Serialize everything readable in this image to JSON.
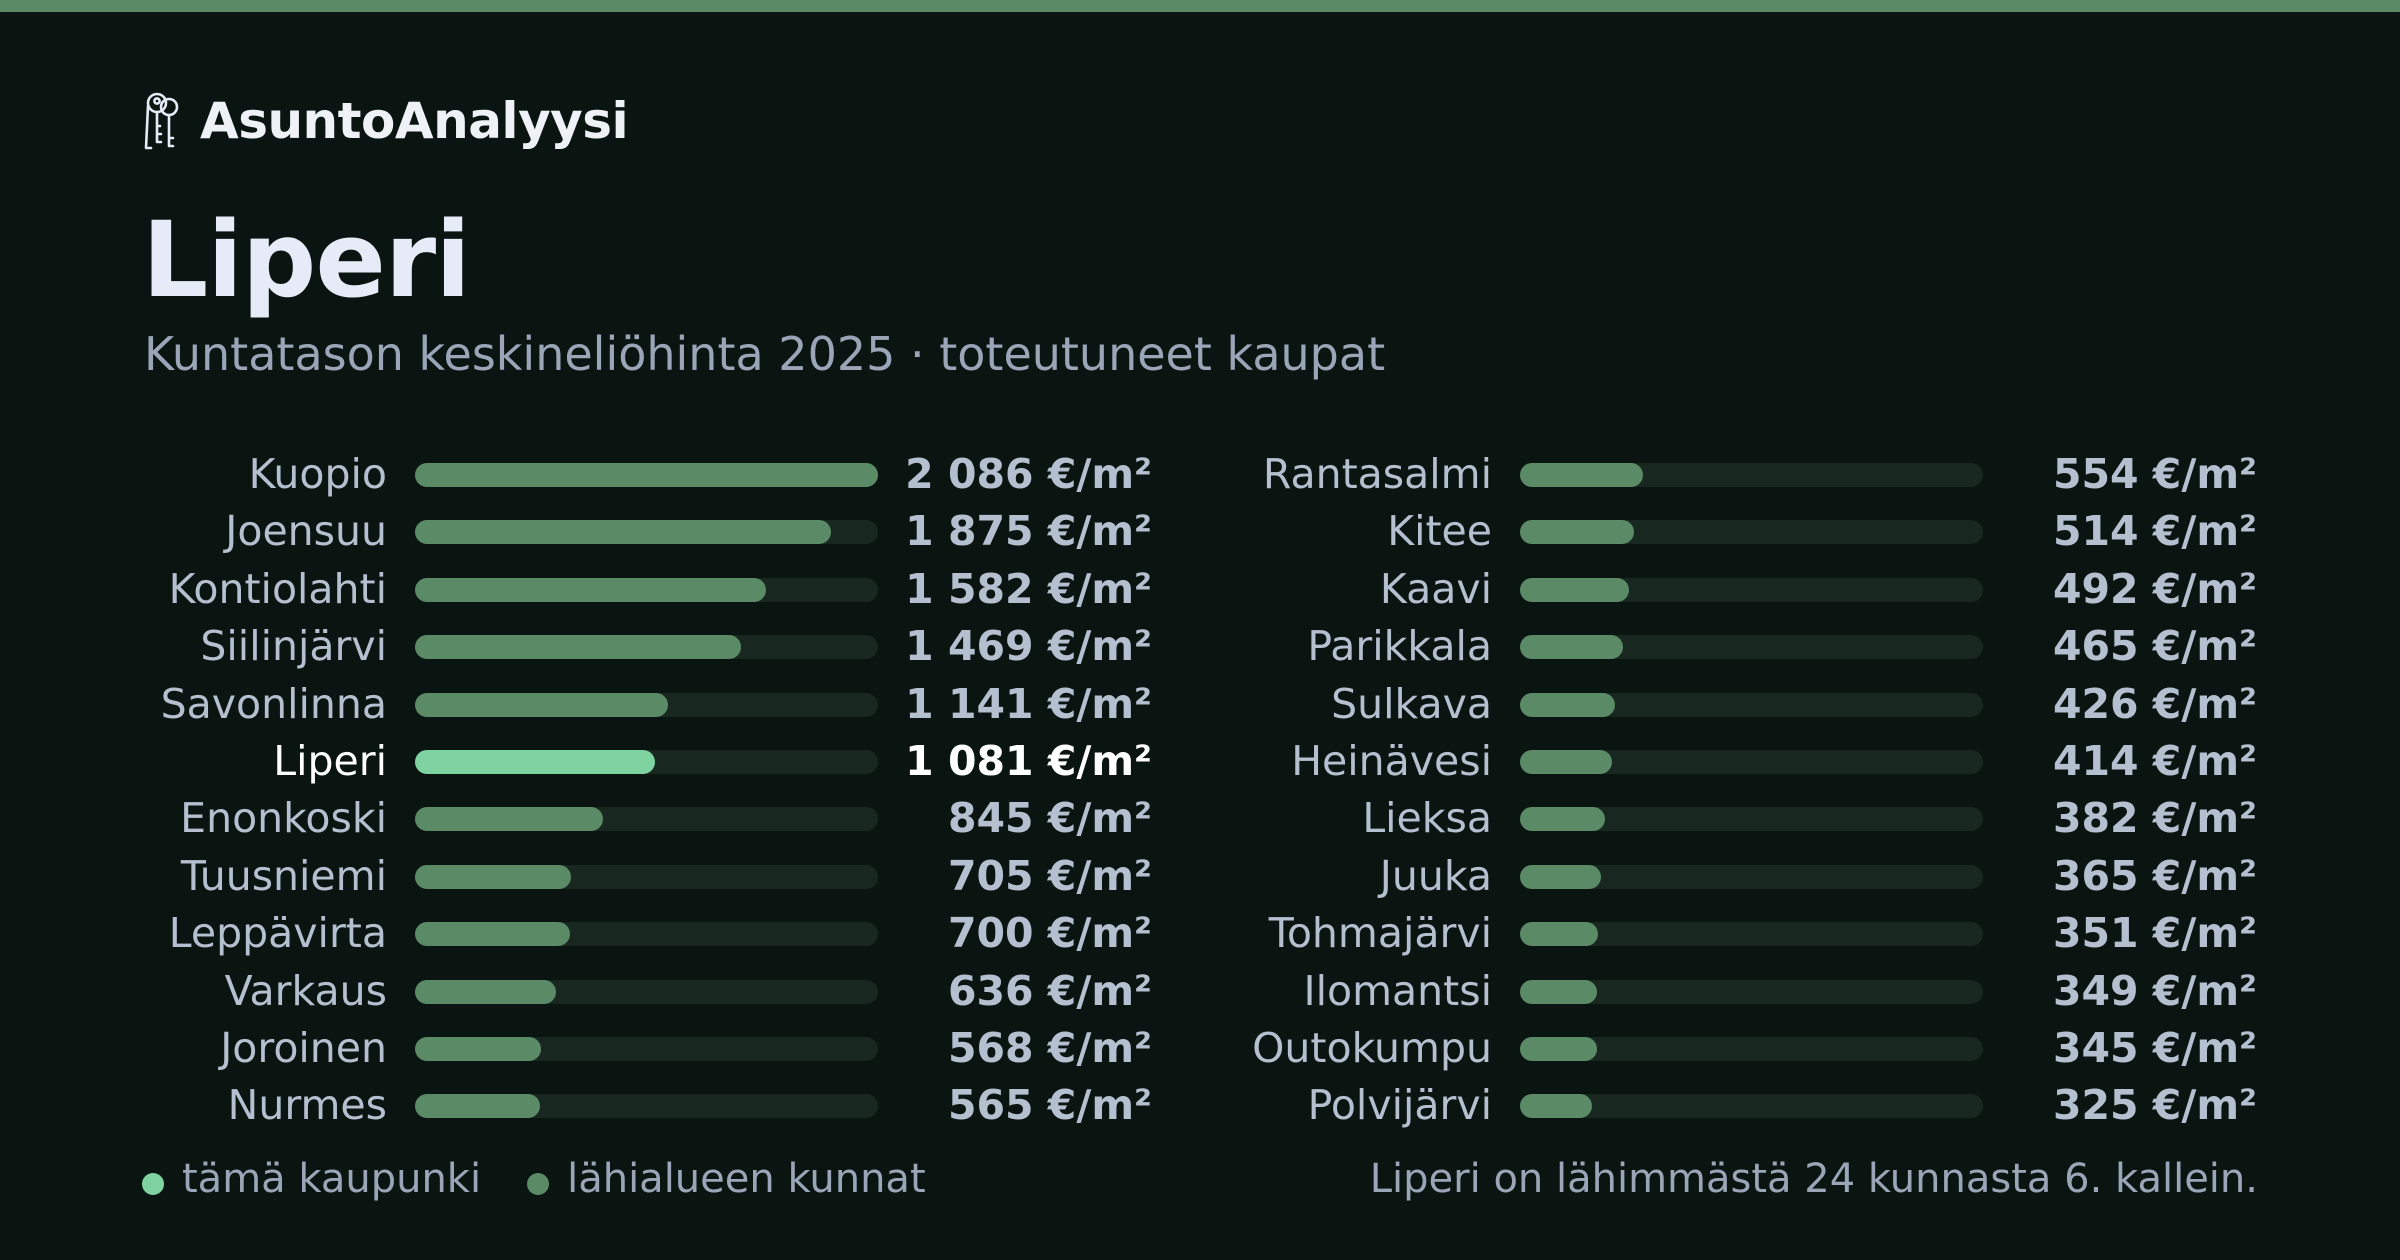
{
  "brand": {
    "name": "AsuntoAnalyysi",
    "icon": "keys-icon"
  },
  "colors": {
    "accent": "#5b8a66",
    "highlight": "#7fd3a0",
    "background": "#0a1512",
    "track": "#18271f"
  },
  "chart_data": {
    "type": "bar",
    "orientation": "horizontal",
    "title": "Liperi",
    "subtitle": "Kuntatason keskineliöhinta 2025 · toteutuneet kaupat",
    "unit": "€/m²",
    "highlight": "Liperi",
    "xlim": [
      0,
      2086
    ],
    "categories": [
      "Kuopio",
      "Joensuu",
      "Kontiolahti",
      "Siilinjärvi",
      "Savonlinna",
      "Liperi",
      "Enonkoski",
      "Tuusniemi",
      "Leppävirta",
      "Varkaus",
      "Joroinen",
      "Nurmes",
      "Rantasalmi",
      "Kitee",
      "Kaavi",
      "Parikkala",
      "Sulkava",
      "Heinävesi",
      "Lieksa",
      "Juuka",
      "Tohmajärvi",
      "Ilomantsi",
      "Outokumpu",
      "Polvijärvi"
    ],
    "values": [
      2086,
      1875,
      1582,
      1469,
      1141,
      1081,
      845,
      705,
      700,
      636,
      568,
      565,
      554,
      514,
      492,
      465,
      426,
      414,
      382,
      365,
      351,
      349,
      345,
      325
    ],
    "value_labels": [
      "2 086 €/m²",
      "1 875 €/m²",
      "1 582 €/m²",
      "1 469 €/m²",
      "1 141 €/m²",
      "1 081 €/m²",
      "845 €/m²",
      "705 €/m²",
      "700 €/m²",
      "636 €/m²",
      "568 €/m²",
      "565 €/m²",
      "554 €/m²",
      "514 €/m²",
      "492 €/m²",
      "465 €/m²",
      "426 €/m²",
      "414 €/m²",
      "382 €/m²",
      "365 €/m²",
      "351 €/m²",
      "349 €/m²",
      "345 €/m²",
      "325 €/m²"
    ],
    "legend": [
      {
        "label": "tämä kaupunki",
        "color": "#7fd3a0"
      },
      {
        "label": "lähialueen kunnat",
        "color": "#5b8a66"
      }
    ]
  },
  "footer": "Liperi on lähimmästä 24 kunnasta 6. kallein."
}
